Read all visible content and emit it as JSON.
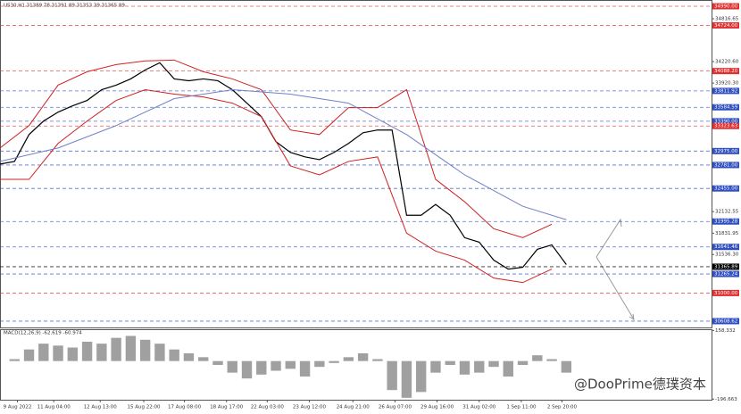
{
  "chart_data": {
    "type": "line",
    "title": "US30,H1  31389.78 31391.89 31353.39 31365.89",
    "xlim": [
      0,
      49
    ],
    "xticks": [
      {
        "value": 1.2,
        "label": "9 Aug 2022"
      },
      {
        "value": 3.7,
        "label": "11 Aug 04:00"
      },
      {
        "value": 6.9,
        "label": "12 Aug 13:00"
      },
      {
        "value": 9.9,
        "label": "15 Aug 22:00"
      },
      {
        "value": 12.7,
        "label": "17 Aug 08:00"
      },
      {
        "value": 15.6,
        "label": "18 Aug 17:00"
      },
      {
        "value": 18.4,
        "label": "22 Aug 03:00"
      },
      {
        "value": 21.3,
        "label": "23 Aug 12:00"
      },
      {
        "value": 24.3,
        "label": "24 Aug 21:00"
      },
      {
        "value": 27.2,
        "label": "26 Aug 07:00"
      },
      {
        "value": 30.1,
        "label": "29 Aug 16:00"
      },
      {
        "value": 33,
        "label": "31 Aug 02:00"
      },
      {
        "value": 35.9,
        "label": "1 Sep 11:00"
      },
      {
        "value": 38.7,
        "label": "2 Sep 20:00"
      }
    ],
    "ylim": [
      30521,
      35077
    ],
    "yticks": [
      34816.65,
      {
        "value": 34220.6,
        "label": "34220.60"
      },
      {
        "value": 33920.3,
        "label": "33920.30"
      },
      32132.55,
      31831.95,
      {
        "value": 31536.3,
        "label": "31536.30"
      }
    ],
    "levels": [
      {
        "value": 34990,
        "label": "34990.00",
        "color": "#e03030"
      },
      {
        "value": 34724,
        "label": "34724.00",
        "color": "#e03030"
      },
      {
        "value": 34088.2,
        "label": "34088.20",
        "color": "#e03030"
      },
      {
        "value": 33811.92,
        "color": "#3050c0"
      },
      {
        "value": 33584.59,
        "color": "#3050c0"
      },
      {
        "value": 33390,
        "label": "33390.00",
        "color": "#3050c0"
      },
      {
        "value": 33323.63,
        "color": "#e03030"
      },
      {
        "value": 32975,
        "label": "32975.00",
        "color": "#3050c0"
      },
      {
        "value": 32781,
        "label": "32781.00",
        "color": "#3050c0"
      },
      {
        "value": 32455,
        "label": "32455.00",
        "color": "#3050c0"
      },
      {
        "value": 31995.28,
        "color": "#3050c0"
      },
      {
        "value": 31641.46,
        "color": "#3050c0"
      },
      {
        "value": 31365.89,
        "color": "#000000"
      },
      {
        "value": 31265.24,
        "color": "#3050c0"
      },
      {
        "value": 31000,
        "label": "31000.00",
        "color": "#e03030"
      },
      {
        "value": 30608.62,
        "color": "#3050c0"
      }
    ],
    "series": [
      {
        "color": "#000000",
        "x": [
          0,
          1,
          2,
          3,
          4,
          5,
          6,
          7,
          8,
          9,
          10,
          11,
          12,
          13,
          14,
          15,
          16,
          17,
          18,
          19,
          20,
          21,
          22,
          23,
          24,
          25,
          26,
          27,
          28,
          29,
          30,
          31,
          32,
          33,
          34,
          35,
          36,
          37,
          38,
          39
        ],
        "values": [
          32794,
          32831,
          33205,
          33393,
          33517,
          33605,
          33680,
          33829,
          33892,
          33979,
          34104,
          34204,
          33979,
          33954,
          33979,
          33954,
          33829,
          33642,
          33455,
          33106,
          32956,
          32894,
          32856,
          32956,
          33081,
          33230,
          33268,
          33268,
          32082,
          32082,
          32232,
          32082,
          31770,
          31708,
          31458,
          31333,
          31358,
          31608,
          31670,
          31396
        ]
      },
      {
        "color": "#d02020",
        "x": [
          0,
          2,
          4,
          6,
          8,
          10,
          12,
          14,
          16,
          18,
          20,
          22,
          24,
          26,
          28,
          30,
          32,
          34,
          36,
          38
        ],
        "values": [
          33018,
          33330,
          33892,
          34079,
          34179,
          34229,
          34241,
          34079,
          33979,
          33829,
          33268,
          33205,
          33580,
          33580,
          33829,
          32581,
          32269,
          31895,
          31770,
          31957
        ]
      },
      {
        "color": "#d02020",
        "x": [
          0,
          2,
          4,
          6,
          8,
          10,
          12,
          14,
          16,
          18,
          20,
          22,
          24,
          26,
          28,
          30,
          32,
          34,
          36,
          38
        ],
        "values": [
          32581,
          32581,
          33081,
          33393,
          33680,
          33829,
          33767,
          33729,
          33642,
          33455,
          32769,
          32644,
          32831,
          32894,
          31833,
          31583,
          31458,
          31208,
          31146,
          31333
        ]
      },
      {
        "color": "#7080c8",
        "x": [
          0,
          4,
          8,
          12,
          16,
          20,
          24,
          28,
          32,
          36,
          39
        ],
        "values": [
          32831,
          33018,
          33330,
          33705,
          33829,
          33767,
          33642,
          33205,
          32644,
          32207,
          32020
        ]
      }
    ],
    "macd": {
      "title": "MACD(12,26,9) -62.619 -60.974",
      "ylim": [
        -200,
        160
      ],
      "yticks": [
        158.332,
        -196.663
      ],
      "color": "#a0a0a0",
      "values": [
        0,
        10,
        60,
        90,
        80,
        70,
        100,
        90,
        120,
        130,
        110,
        90,
        60,
        40,
        20,
        -20,
        -60,
        -90,
        -70,
        -50,
        -40,
        -80,
        -30,
        -10,
        20,
        40,
        10,
        -150,
        -190,
        -160,
        -60,
        -20,
        -70,
        -60,
        -30,
        -80,
        -20,
        30,
        10,
        -60
      ]
    },
    "watermark": "@DooPrime德璞资本"
  }
}
